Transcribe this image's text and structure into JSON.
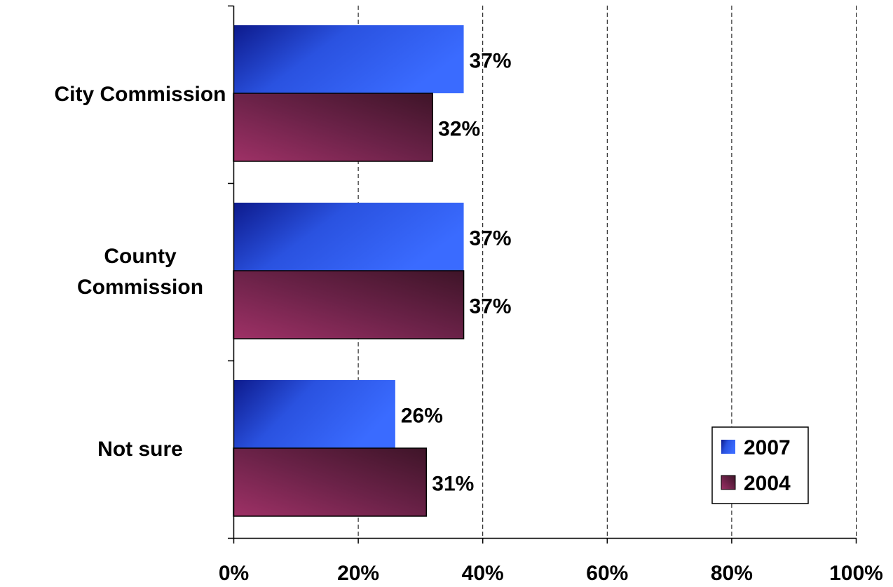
{
  "chart_data": {
    "type": "bar",
    "orientation": "horizontal",
    "categories": [
      [
        "City Commission"
      ],
      [
        "County",
        "Commission"
      ],
      [
        "Not sure"
      ]
    ],
    "series": [
      {
        "name": "2007",
        "values": [
          37,
          37,
          26
        ],
        "labels": [
          "37%",
          "37%",
          "26%"
        ]
      },
      {
        "name": "2004",
        "values": [
          32,
          37,
          31
        ],
        "labels": [
          "32%",
          "37%",
          "31%"
        ]
      }
    ],
    "xlim": [
      0,
      100
    ],
    "xticks": [
      0,
      20,
      40,
      60,
      80,
      100
    ],
    "xtick_labels": [
      "0%",
      "20%",
      "40%",
      "60%",
      "80%",
      "100%"
    ],
    "grid": "vertical-dashed",
    "legend": "bottom-right",
    "colors": {
      "2007": "#3366ff",
      "2004": "#7a2350"
    }
  }
}
